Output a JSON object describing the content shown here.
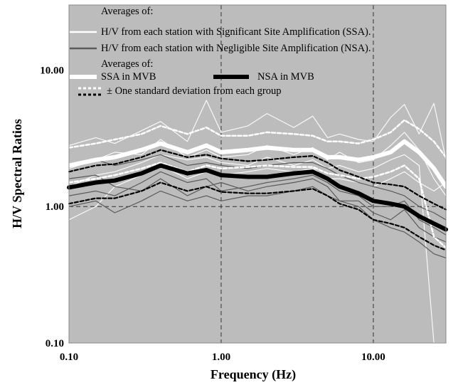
{
  "chart_data": {
    "type": "line",
    "xlabel": "Frequency (Hz)",
    "ylabel": "H/V Spectral Ratios",
    "x_scale": "log",
    "y_scale": "log",
    "xlim": [
      0.1,
      30
    ],
    "ylim": [
      0.1,
      30
    ],
    "x_ticks": [
      "0.10",
      "1.00",
      "10.00"
    ],
    "y_ticks": [
      "0.10",
      "1.00",
      "10.00"
    ],
    "grid": "dashed at 1.00 on both axes and 10.00 on x",
    "colors": {
      "plot_bg": "#bcbcbc",
      "ssa": "#ffffff",
      "nsa": "#000000",
      "nsa_station": "#5a5a5a"
    },
    "legend": {
      "heading_1": "Averages of:",
      "station_ssa": "H/V from each station with Significant Site Amplification (SSA).",
      "station_nsa": "H/V from each station with Negligible Site Amplification (NSA).",
      "heading_2": "Averages of:",
      "avg_ssa": "SSA in MVB",
      "avg_nsa": "NSA in MVB",
      "std": "± One standard deviation  from each group"
    },
    "x": [
      0.1,
      0.15,
      0.2,
      0.3,
      0.4,
      0.6,
      0.8,
      1.0,
      1.5,
      2.0,
      3.0,
      4.0,
      5.0,
      6.0,
      8.0,
      10.0,
      13.0,
      16.0,
      20.0,
      25.0,
      30.0
    ],
    "series": [
      {
        "name": "SSA in MVB",
        "group": "avg_ssa",
        "values": [
          2.0,
          2.2,
          2.3,
          2.6,
          2.9,
          2.5,
          2.8,
          2.5,
          2.6,
          2.7,
          2.6,
          2.6,
          2.3,
          2.3,
          2.2,
          2.3,
          2.5,
          3.0,
          2.5,
          1.9,
          1.4
        ]
      },
      {
        "name": "NSA in MVB",
        "group": "avg_nsa",
        "values": [
          1.38,
          1.5,
          1.55,
          1.75,
          2.0,
          1.75,
          1.85,
          1.7,
          1.65,
          1.65,
          1.75,
          1.8,
          1.6,
          1.4,
          1.25,
          1.1,
          1.05,
          1.0,
          0.85,
          0.75,
          0.68
        ]
      },
      {
        "group": "std_ssa_upper",
        "values": [
          2.7,
          2.9,
          3.1,
          3.4,
          3.9,
          3.4,
          3.8,
          3.3,
          3.3,
          3.5,
          3.4,
          3.3,
          3.0,
          3.0,
          2.9,
          3.1,
          3.5,
          4.3,
          3.7,
          3.0,
          2.3
        ]
      },
      {
        "group": "std_ssa_lower",
        "values": [
          1.5,
          1.6,
          1.7,
          1.9,
          2.1,
          1.8,
          2.0,
          1.9,
          1.95,
          2.0,
          1.95,
          1.95,
          1.75,
          1.7,
          1.6,
          1.65,
          1.8,
          2.0,
          1.6,
          0.6,
          0.5
        ]
      },
      {
        "group": "std_nsa_upper",
        "values": [
          1.8,
          2.0,
          2.05,
          2.3,
          2.6,
          2.3,
          2.4,
          2.25,
          2.15,
          2.2,
          2.3,
          2.35,
          2.1,
          1.85,
          1.65,
          1.5,
          1.45,
          1.4,
          1.2,
          1.05,
          0.95
        ]
      },
      {
        "group": "std_nsa_lower",
        "values": [
          1.05,
          1.15,
          1.15,
          1.3,
          1.5,
          1.3,
          1.4,
          1.28,
          1.25,
          1.25,
          1.3,
          1.35,
          1.2,
          1.05,
          0.95,
          0.8,
          0.75,
          0.7,
          0.6,
          0.52,
          0.48
        ]
      },
      {
        "group": "station_ssa",
        "values": [
          2.8,
          3.2,
          2.9,
          3.6,
          4.2,
          3.0,
          6.0,
          3.5,
          3.9,
          4.8,
          3.8,
          4.6,
          3.2,
          3.4,
          3.1,
          3.0,
          4.5,
          5.6,
          3.4,
          5.7,
          2.2
        ]
      },
      {
        "group": "station_ssa",
        "values": [
          1.9,
          2.2,
          2.5,
          2.4,
          3.1,
          2.3,
          2.6,
          2.3,
          2.4,
          2.8,
          2.4,
          2.7,
          2.2,
          2.5,
          2.1,
          2.2,
          2.8,
          3.5,
          2.6,
          1.6,
          1.2
        ]
      },
      {
        "group": "station_ssa",
        "values": [
          1.4,
          1.7,
          1.8,
          2.1,
          2.4,
          2.2,
          2.3,
          2.1,
          2.0,
          2.3,
          2.0,
          2.2,
          1.9,
          2.0,
          1.8,
          1.9,
          2.2,
          2.4,
          2.0,
          0.09,
          0.09
        ]
      },
      {
        "group": "station_ssa",
        "values": [
          0.8,
          1.0,
          1.4,
          1.7,
          2.0,
          1.6,
          1.8,
          1.7,
          1.8,
          1.9,
          1.8,
          1.9,
          1.6,
          1.6,
          1.5,
          1.4,
          1.6,
          1.8,
          1.5,
          1.3,
          1.5
        ]
      },
      {
        "group": "station_nsa",
        "values": [
          1.6,
          1.7,
          1.4,
          1.3,
          1.6,
          1.2,
          1.4,
          1.5,
          1.3,
          1.4,
          1.5,
          1.6,
          1.4,
          1.1,
          1.1,
          0.9,
          0.8,
          0.95,
          0.7,
          0.6,
          0.55
        ]
      },
      {
        "group": "station_nsa",
        "values": [
          1.2,
          1.3,
          1.2,
          1.5,
          1.8,
          1.5,
          1.6,
          1.3,
          1.4,
          1.5,
          1.6,
          1.7,
          1.5,
          1.3,
          1.2,
          1.0,
          1.0,
          1.1,
          0.8,
          0.7,
          0.62
        ]
      },
      {
        "group": "station_nsa",
        "values": [
          1.0,
          1.1,
          0.9,
          1.1,
          1.3,
          1.1,
          1.2,
          1.1,
          1.2,
          1.2,
          1.3,
          1.4,
          1.2,
          1.1,
          1.0,
          0.8,
          0.7,
          0.65,
          0.55,
          0.45,
          0.42
        ]
      },
      {
        "group": "station_nsa",
        "values": [
          2.0,
          2.2,
          2.0,
          2.2,
          2.4,
          2.0,
          2.1,
          2.0,
          1.9,
          2.0,
          2.1,
          2.1,
          1.9,
          1.7,
          1.5,
          1.4,
          1.3,
          1.2,
          1.0,
          0.9,
          0.8
        ]
      }
    ]
  }
}
